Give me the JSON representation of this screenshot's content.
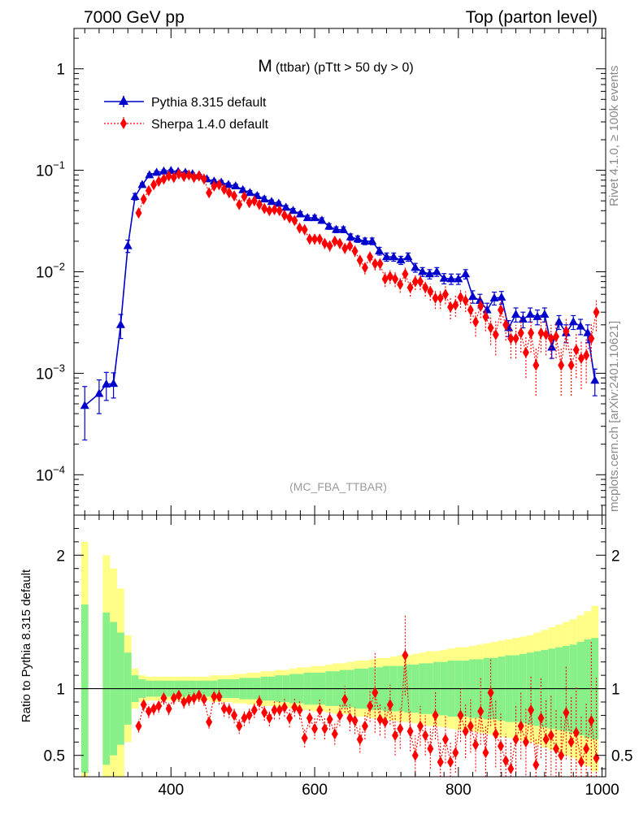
{
  "header": {
    "left": "7000 GeV pp",
    "right": "Top (parton level)"
  },
  "side": {
    "rivet": "Rivet 4.1.0, ≥ 100k events",
    "mcplots": "mcplots.cern.ch [arXiv:2401.10621]"
  },
  "chart_data": [
    {
      "type": "line",
      "title_main": "M",
      "title_sub": "(ttbar) (pTtt > 50 dy > 0)",
      "watermark": "(MC_FBA_TTBAR)",
      "yscale": "log",
      "xlim": [
        265,
        1005
      ],
      "ylim": [
        4e-05,
        2.5
      ],
      "y_tick_labels": [
        {
          "v": 1,
          "base": "1",
          "exp": ""
        },
        {
          "v": 0.1,
          "base": "10",
          "exp": "−1"
        },
        {
          "v": 0.01,
          "base": "10",
          "exp": "−2"
        },
        {
          "v": 0.001,
          "base": "10",
          "exp": "−3"
        },
        {
          "v": 0.0001,
          "base": "10",
          "exp": "−4"
        }
      ],
      "legend": {
        "position": "top-left"
      },
      "series": [
        {
          "name": "Pythia 8.315 default",
          "color": "#0000cc",
          "marker": "triangle",
          "x": [
            280,
            300,
            310,
            320,
            330,
            340,
            350,
            360,
            370,
            380,
            390,
            400,
            410,
            420,
            430,
            440,
            450,
            460,
            470,
            480,
            490,
            500,
            510,
            520,
            530,
            540,
            550,
            560,
            570,
            580,
            590,
            600,
            610,
            620,
            630,
            640,
            650,
            660,
            670,
            680,
            690,
            700,
            710,
            720,
            730,
            740,
            750,
            760,
            770,
            780,
            790,
            800,
            810,
            820,
            830,
            840,
            850,
            860,
            870,
            880,
            890,
            900,
            910,
            920,
            930,
            940,
            950,
            960,
            970,
            980,
            990
          ],
          "y": [
            0.00048,
            0.00063,
            0.00078,
            0.00079,
            0.003,
            0.018,
            0.055,
            0.072,
            0.09,
            0.095,
            0.098,
            0.099,
            0.097,
            0.095,
            0.092,
            0.088,
            0.082,
            0.078,
            0.076,
            0.072,
            0.07,
            0.064,
            0.06,
            0.056,
            0.052,
            0.049,
            0.047,
            0.043,
            0.04,
            0.037,
            0.034,
            0.034,
            0.032,
            0.028,
            0.026,
            0.026,
            0.022,
            0.021,
            0.02,
            0.02,
            0.016,
            0.014,
            0.014,
            0.013,
            0.014,
            0.011,
            0.01,
            0.0095,
            0.01,
            0.0086,
            0.0085,
            0.0085,
            0.0095,
            0.0057,
            0.0052,
            0.0042,
            0.0055,
            0.0056,
            0.0028,
            0.0038,
            0.0034,
            0.0038,
            0.0036,
            0.0038,
            0.0018,
            0.0032,
            0.0025,
            0.0032,
            0.0029,
            0.0025,
            0.00085
          ],
          "err": [
            0.00026,
            0.00023,
            0.00024,
            0.00022,
            0.0008,
            0.0025,
            0.004,
            0.003,
            0.003,
            0.003,
            0.003,
            0.003,
            0.003,
            0.003,
            0.003,
            0.003,
            0.003,
            0.003,
            0.003,
            0.003,
            0.003,
            0.003,
            0.003,
            0.003,
            0.003,
            0.002,
            0.002,
            0.002,
            0.002,
            0.002,
            0.002,
            0.002,
            0.002,
            0.0018,
            0.0017,
            0.0017,
            0.0016,
            0.0015,
            0.0015,
            0.0015,
            0.0014,
            0.0013,
            0.0013,
            0.0012,
            0.0013,
            0.0011,
            0.001,
            0.001,
            0.001,
            0.001,
            0.001,
            0.001,
            0.001,
            0.0008,
            0.0008,
            0.0007,
            0.0008,
            0.0008,
            0.0005,
            0.0006,
            0.0006,
            0.0006,
            0.0006,
            0.0006,
            0.0004,
            0.0005,
            0.0005,
            0.0005,
            0.0005,
            0.0005,
            0.00025
          ]
        },
        {
          "name": "Sherpa 1.4.0 default",
          "color": "#ff0000",
          "marker": "diamond",
          "x": [
            355,
            362,
            369,
            376,
            383,
            390,
            397,
            404,
            411,
            418,
            425,
            432,
            439,
            446,
            453,
            460,
            467,
            474,
            481,
            488,
            495,
            502,
            509,
            516,
            523,
            530,
            537,
            544,
            551,
            558,
            565,
            572,
            579,
            586,
            593,
            600,
            607,
            614,
            621,
            628,
            635,
            642,
            649,
            656,
            663,
            670,
            677,
            684,
            691,
            698,
            705,
            712,
            719,
            726,
            733,
            740,
            747,
            754,
            761,
            768,
            775,
            782,
            789,
            796,
            803,
            810,
            817,
            824,
            831,
            838,
            845,
            852,
            859,
            866,
            873,
            880,
            887,
            894,
            901,
            908,
            915,
            922,
            929,
            936,
            943,
            950,
            957,
            964,
            971,
            978,
            985,
            992
          ],
          "y": [
            0.038,
            0.052,
            0.063,
            0.072,
            0.078,
            0.082,
            0.088,
            0.085,
            0.092,
            0.087,
            0.09,
            0.085,
            0.088,
            0.082,
            0.06,
            0.07,
            0.072,
            0.065,
            0.06,
            0.056,
            0.046,
            0.055,
            0.048,
            0.05,
            0.046,
            0.042,
            0.04,
            0.041,
            0.04,
            0.036,
            0.034,
            0.032,
            0.027,
            0.026,
            0.021,
            0.021,
            0.021,
            0.019,
            0.018,
            0.02,
            0.019,
            0.017,
            0.018,
            0.016,
            0.013,
            0.011,
            0.014,
            0.012,
            0.012,
            0.0085,
            0.009,
            0.0085,
            0.0075,
            0.0095,
            0.007,
            0.008,
            0.008,
            0.007,
            0.0064,
            0.0055,
            0.0055,
            0.006,
            0.0045,
            0.0047,
            0.0056,
            0.0052,
            0.0042,
            0.0032,
            0.0046,
            0.0036,
            0.0028,
            0.0024,
            0.0042,
            0.003,
            0.0022,
            0.0022,
            0.0025,
            0.0016,
            0.0025,
            0.0012,
            0.0025,
            0.0024,
            0.0022,
            0.0023,
            0.0012,
            0.0026,
            0.0012,
            0.0017,
            0.0014,
            0.0015,
            0.0022,
            0.004
          ],
          "err": [
            0.004,
            0.004,
            0.004,
            0.004,
            0.004,
            0.004,
            0.004,
            0.004,
            0.004,
            0.004,
            0.004,
            0.004,
            0.004,
            0.004,
            0.004,
            0.004,
            0.004,
            0.004,
            0.004,
            0.004,
            0.004,
            0.004,
            0.004,
            0.004,
            0.003,
            0.003,
            0.003,
            0.003,
            0.003,
            0.003,
            0.003,
            0.003,
            0.003,
            0.003,
            0.0025,
            0.0025,
            0.0025,
            0.0022,
            0.0022,
            0.0022,
            0.0022,
            0.002,
            0.002,
            0.002,
            0.0018,
            0.0016,
            0.0018,
            0.0017,
            0.0017,
            0.0014,
            0.0014,
            0.0014,
            0.0013,
            0.0015,
            0.0013,
            0.0014,
            0.0014,
            0.0013,
            0.0012,
            0.0012,
            0.0012,
            0.0012,
            0.0011,
            0.0011,
            0.0012,
            0.0012,
            0.0011,
            0.0009,
            0.0011,
            0.001,
            0.0009,
            0.0009,
            0.0011,
            0.0009,
            0.0008,
            0.0008,
            0.0009,
            0.0007,
            0.0009,
            0.0006,
            0.0009,
            0.0009,
            0.0008,
            0.0009,
            0.0006,
            0.0009,
            0.0006,
            0.0008,
            0.0007,
            0.0007,
            0.0009,
            0.0014
          ]
        }
      ]
    },
    {
      "type": "line",
      "ylabel": "Ratio to Pythia 8.315 default",
      "xlim": [
        265,
        1005
      ],
      "ylim": [
        0.34,
        2.3
      ],
      "x_ticks": [
        400,
        600,
        800,
        1000
      ],
      "y_ticks": [
        0.5,
        1,
        2
      ],
      "band": {
        "x": [
          280,
          300,
          310,
          320,
          330,
          340,
          350,
          360,
          370,
          380,
          390,
          400,
          410,
          420,
          430,
          440,
          450,
          460,
          470,
          480,
          490,
          500,
          510,
          520,
          530,
          540,
          550,
          560,
          570,
          580,
          590,
          600,
          610,
          620,
          630,
          640,
          650,
          660,
          670,
          680,
          690,
          700,
          710,
          720,
          730,
          740,
          750,
          760,
          770,
          780,
          790,
          800,
          810,
          820,
          830,
          840,
          850,
          860,
          870,
          880,
          890,
          900,
          910,
          920,
          930,
          940,
          950,
          960,
          970,
          980,
          990
        ],
        "inner": [
          0.63,
          0.0,
          0.57,
          0.5,
          0.42,
          0.27,
          0.1,
          0.07,
          0.06,
          0.06,
          0.06,
          0.06,
          0.06,
          0.06,
          0.06,
          0.06,
          0.06,
          0.06,
          0.07,
          0.07,
          0.07,
          0.08,
          0.08,
          0.08,
          0.09,
          0.09,
          0.1,
          0.1,
          0.11,
          0.11,
          0.12,
          0.12,
          0.12,
          0.13,
          0.13,
          0.14,
          0.14,
          0.15,
          0.15,
          0.16,
          0.16,
          0.17,
          0.17,
          0.17,
          0.18,
          0.18,
          0.19,
          0.19,
          0.2,
          0.2,
          0.21,
          0.21,
          0.21,
          0.22,
          0.22,
          0.23,
          0.23,
          0.24,
          0.25,
          0.25,
          0.26,
          0.27,
          0.28,
          0.29,
          0.3,
          0.31,
          0.32,
          0.33,
          0.35,
          0.37,
          0.38
        ],
        "outer": [
          1.1,
          0.0,
          1.0,
          0.9,
          0.75,
          0.4,
          0.15,
          0.1,
          0.09,
          0.09,
          0.09,
          0.09,
          0.09,
          0.09,
          0.09,
          0.09,
          0.09,
          0.1,
          0.1,
          0.1,
          0.11,
          0.11,
          0.12,
          0.12,
          0.13,
          0.13,
          0.14,
          0.14,
          0.15,
          0.16,
          0.16,
          0.17,
          0.17,
          0.18,
          0.19,
          0.19,
          0.2,
          0.21,
          0.21,
          0.22,
          0.23,
          0.23,
          0.24,
          0.25,
          0.25,
          0.26,
          0.27,
          0.28,
          0.28,
          0.29,
          0.3,
          0.31,
          0.31,
          0.32,
          0.33,
          0.34,
          0.35,
          0.36,
          0.37,
          0.38,
          0.39,
          0.4,
          0.42,
          0.44,
          0.46,
          0.48,
          0.5,
          0.52,
          0.55,
          0.58,
          0.62
        ]
      },
      "ratio": {
        "x": [
          355,
          362,
          369,
          376,
          383,
          390,
          397,
          404,
          411,
          418,
          425,
          432,
          439,
          446,
          453,
          460,
          467,
          474,
          481,
          488,
          495,
          502,
          509,
          516,
          523,
          530,
          537,
          544,
          551,
          558,
          565,
          572,
          579,
          586,
          593,
          600,
          607,
          614,
          621,
          628,
          635,
          642,
          649,
          656,
          663,
          670,
          677,
          684,
          691,
          698,
          705,
          712,
          719,
          726,
          733,
          740,
          747,
          754,
          761,
          768,
          775,
          782,
          789,
          796,
          803,
          810,
          817,
          824,
          831,
          838,
          845,
          852,
          859,
          866,
          873,
          880,
          887,
          894,
          901,
          908,
          915,
          922,
          929,
          936,
          943,
          950,
          957,
          964,
          971,
          978,
          985,
          992
        ],
        "y": [
          0.72,
          0.88,
          0.83,
          0.85,
          0.87,
          0.93,
          0.85,
          0.93,
          0.95,
          0.9,
          0.92,
          0.93,
          0.95,
          0.92,
          0.75,
          0.94,
          0.94,
          0.85,
          0.84,
          0.8,
          0.72,
          0.78,
          0.8,
          0.84,
          0.9,
          0.82,
          0.78,
          0.84,
          0.84,
          0.86,
          0.78,
          0.86,
          0.84,
          0.63,
          0.78,
          0.7,
          0.84,
          0.7,
          0.77,
          0.66,
          0.8,
          0.92,
          0.78,
          0.76,
          0.62,
          0.72,
          0.87,
          0.97,
          0.77,
          0.75,
          0.88,
          0.65,
          0.7,
          1.25,
          0.68,
          0.5,
          0.72,
          0.65,
          0.55,
          0.8,
          0.45,
          0.62,
          0.45,
          0.52,
          0.8,
          0.68,
          0.72,
          0.58,
          0.83,
          0.52,
          0.97,
          0.66,
          0.57,
          0.46,
          0.4,
          0.62,
          0.72,
          0.6,
          0.84,
          0.43,
          0.78,
          0.62,
          0.65,
          0.55,
          0.5,
          0.82,
          0.6,
          0.67,
          0.45,
          0.55,
          0.76,
          0.48
        ],
        "err": [
          0.05,
          0.05,
          0.05,
          0.05,
          0.05,
          0.05,
          0.05,
          0.05,
          0.05,
          0.05,
          0.05,
          0.05,
          0.05,
          0.05,
          0.05,
          0.05,
          0.06,
          0.06,
          0.06,
          0.06,
          0.06,
          0.06,
          0.06,
          0.06,
          0.06,
          0.06,
          0.06,
          0.07,
          0.07,
          0.07,
          0.07,
          0.07,
          0.07,
          0.07,
          0.07,
          0.08,
          0.08,
          0.08,
          0.08,
          0.08,
          0.08,
          0.1,
          0.1,
          0.1,
          0.1,
          0.1,
          0.12,
          0.3,
          0.12,
          0.12,
          0.15,
          0.15,
          0.15,
          0.3,
          0.15,
          0.15,
          0.15,
          0.15,
          0.15,
          0.18,
          0.15,
          0.18,
          0.15,
          0.15,
          0.2,
          0.2,
          0.2,
          0.2,
          0.25,
          0.2,
          0.25,
          0.25,
          0.25,
          0.2,
          0.2,
          0.25,
          0.25,
          0.25,
          0.25,
          0.2,
          0.3,
          0.3,
          0.3,
          0.3,
          0.3,
          0.35,
          0.35,
          0.35,
          0.35,
          0.35,
          0.6,
          0.6
        ]
      }
    }
  ]
}
